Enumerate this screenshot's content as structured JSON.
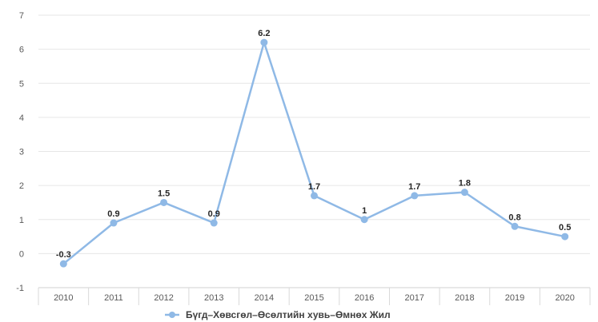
{
  "chart_data": {
    "type": "line",
    "title": "",
    "xlabel": "",
    "ylabel": "",
    "categories": [
      "2010",
      "2011",
      "2012",
      "2013",
      "2014",
      "2015",
      "2016",
      "2017",
      "2018",
      "2019",
      "2020"
    ],
    "series": [
      {
        "name": "Бүгд–Хөвсгөл–Өсөлтийн хувь–Өмнөх Жил",
        "values": [
          -0.3,
          0.9,
          1.5,
          0.9,
          6.2,
          1.7,
          1,
          1.7,
          1.8,
          0.8,
          0.5
        ],
        "data_labels": [
          "-0.3",
          "0.9",
          "1.5",
          "0.9",
          "6.2",
          "1.7",
          "1",
          "1.7",
          "1.8",
          "0.8",
          "0.5"
        ],
        "color": "#8fb9e6"
      }
    ],
    "ylim": [
      -1,
      7
    ],
    "yticks": [
      -1,
      0,
      1,
      2,
      3,
      4,
      5,
      6,
      7
    ],
    "grid": true,
    "legend": "bottom"
  }
}
